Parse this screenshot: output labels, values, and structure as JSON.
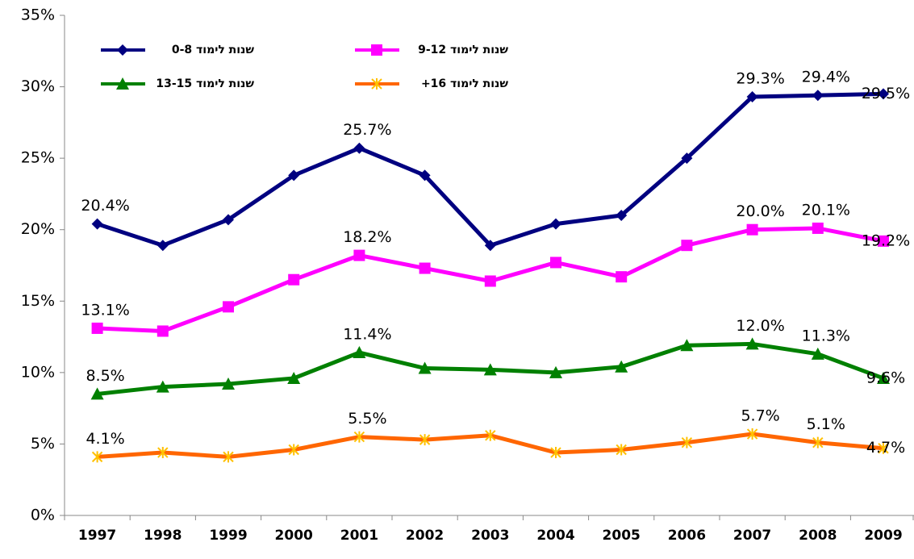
{
  "chart_data": {
    "type": "line",
    "categories": [
      "1997",
      "1998",
      "1999",
      "2000",
      "2001",
      "2002",
      "2003",
      "2004",
      "2005",
      "2006",
      "2007",
      "2008",
      "2009"
    ],
    "series": [
      {
        "name": "שנות לימוד 0-8",
        "color": "#000080",
        "marker": "diamond",
        "values": [
          20.4,
          18.9,
          20.7,
          23.8,
          25.7,
          23.8,
          18.9,
          20.4,
          21.0,
          25.0,
          29.3,
          29.4,
          29.5
        ],
        "value_labels": [
          "20.4%",
          null,
          null,
          null,
          "25.7%",
          null,
          null,
          null,
          null,
          null,
          "29.3%",
          "29.4%",
          "29.5%"
        ]
      },
      {
        "name": "שנות לימוד 9-12",
        "color": "#ff00ff",
        "marker": "square",
        "values": [
          13.1,
          12.9,
          14.6,
          16.5,
          18.2,
          17.3,
          16.4,
          17.7,
          16.7,
          18.9,
          20.0,
          20.1,
          19.2
        ],
        "value_labels": [
          "13.1%",
          null,
          null,
          null,
          "18.2%",
          null,
          null,
          null,
          null,
          null,
          "20.0%",
          "20.1%",
          "19.2%"
        ]
      },
      {
        "name": "שנות לימוד 13-15",
        "color": "#008000",
        "marker": "triangle",
        "values": [
          8.5,
          9.0,
          9.2,
          9.6,
          11.4,
          10.3,
          10.2,
          10.0,
          10.4,
          11.9,
          12.0,
          11.3,
          9.6
        ],
        "value_labels": [
          "8.5%",
          null,
          null,
          null,
          "11.4%",
          null,
          null,
          null,
          null,
          null,
          "12.0%",
          "11.3%",
          "9.6%"
        ]
      },
      {
        "name": "שנות לימוד 16+",
        "color": "#ff6600",
        "marker": "x",
        "values": [
          4.1,
          4.4,
          4.1,
          4.6,
          5.5,
          5.3,
          5.6,
          4.4,
          4.6,
          5.1,
          5.7,
          5.1,
          4.7
        ],
        "value_labels": [
          "4.1%",
          null,
          null,
          null,
          "5.5%",
          null,
          null,
          null,
          null,
          null,
          "5.7%",
          "5.1%",
          "4.7%"
        ]
      }
    ],
    "ylim": [
      0,
      35
    ],
    "yticks": [
      {
        "value": 0,
        "label": "0%"
      },
      {
        "value": 5,
        "label": "5%"
      },
      {
        "value": 10,
        "label": "10%"
      },
      {
        "value": 15,
        "label": "15%"
      },
      {
        "value": 20,
        "label": "20%"
      },
      {
        "value": 25,
        "label": "25%"
      },
      {
        "value": 30,
        "label": "30%"
      },
      {
        "value": 35,
        "label": "35%"
      }
    ],
    "grid": false,
    "legend": "top-left"
  }
}
